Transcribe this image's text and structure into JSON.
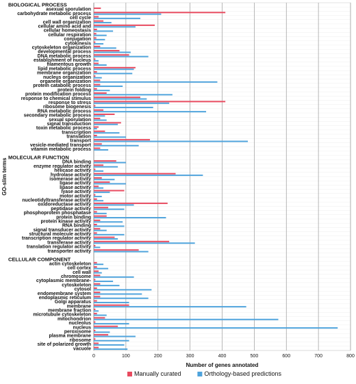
{
  "chart_data": {
    "type": "bar",
    "orientation": "horizontal",
    "xlabel": "Number of genes annotated",
    "ylabel": "GO-slim terms",
    "xlim": [
      0,
      800
    ],
    "xticks": [
      "0",
      "100",
      "200",
      "300",
      "400",
      "500",
      "600",
      "700",
      "800"
    ],
    "grid": true,
    "legend_position": "bottom",
    "series": [
      {
        "name": "Manually curated",
        "color": "#e84a5f"
      },
      {
        "name": "Orthology-based predictions",
        "color": "#4ea3dc"
      }
    ],
    "sections": [
      {
        "title": "BIOLOGICAL PROCESS",
        "items": [
          {
            "label": "asexual sporulation",
            "manual": 22,
            "ortholog": 0
          },
          {
            "label": "carbohydrate metabolic process",
            "manual": 410,
            "ortholog": 210
          },
          {
            "label": "cell cycle",
            "manual": 15,
            "ortholog": 145
          },
          {
            "label": "cell wall organization",
            "manual": 30,
            "ortholog": 55
          },
          {
            "label": "cellular amino acid and",
            "manual": 190,
            "ortholog": 130
          },
          {
            "label": "cellular homeostasis",
            "manual": 10,
            "ortholog": 60
          },
          {
            "label": "cellular respiration",
            "manual": 8,
            "ortholog": 40
          },
          {
            "label": "conjugation",
            "manual": 8,
            "ortholog": 35
          },
          {
            "label": "cytokinesis",
            "manual": 5,
            "ortholog": 30
          },
          {
            "label": "cytoskeleton organization",
            "manual": 20,
            "ortholog": 70
          },
          {
            "label": "developmental process",
            "manual": 80,
            "ortholog": 115
          },
          {
            "label": "DNA metabolic process",
            "manual": 110,
            "ortholog": 170
          },
          {
            "label": "establishment of nucleus",
            "manual": 5,
            "ortholog": 15
          },
          {
            "label": "filamentous growth",
            "manual": 15,
            "ortholog": 40
          },
          {
            "label": "lipid metabolic process",
            "manual": 130,
            "ortholog": 125
          },
          {
            "label": "membrane organization",
            "manual": 10,
            "ortholog": 120
          },
          {
            "label": "nucleus organization",
            "manual": 5,
            "ortholog": 25
          },
          {
            "label": "organelle organization",
            "manual": 20,
            "ortholog": 385
          },
          {
            "label": "protein catabolic process",
            "manual": 20,
            "ortholog": 90
          },
          {
            "label": "protein folding",
            "manual": 10,
            "ortholog": 50
          },
          {
            "label": "protein modification process",
            "manual": 40,
            "ortholog": 245
          },
          {
            "label": "response to chemical stimulus",
            "manual": 145,
            "ortholog": 165
          },
          {
            "label": "response to stress",
            "manual": 410,
            "ortholog": 235
          },
          {
            "label": "ribosome biogenesis",
            "manual": 5,
            "ortholog": 185
          },
          {
            "label": "RNA metabolic process",
            "manual": 30,
            "ortholog": 350
          },
          {
            "label": "secondary metabolic process",
            "manual": 65,
            "ortholog": 35
          },
          {
            "label": "sexual sporulation",
            "manual": 20,
            "ortholog": 40
          },
          {
            "label": "signal transduction",
            "manual": 85,
            "ortholog": 75
          },
          {
            "label": "toxin metabolic process",
            "manual": 15,
            "ortholog": 10
          },
          {
            "label": "transcription",
            "manual": 35,
            "ortholog": 80
          },
          {
            "label": "translation",
            "manual": 10,
            "ortholog": 100
          },
          {
            "label": "transport",
            "manual": 175,
            "ortholog": 480
          },
          {
            "label": "vesicle-mediated transport",
            "manual": 25,
            "ortholog": 140
          },
          {
            "label": "vitamin metabolic process",
            "manual": 20,
            "ortholog": 45
          }
        ]
      },
      {
        "title": "MOLECULAR FUNCTION",
        "items": [
          {
            "label": "DNA binding",
            "manual": 70,
            "ortholog": 100
          },
          {
            "label": "enzyme regulator activity",
            "manual": 30,
            "ortholog": 75
          },
          {
            "label": "helicase activity",
            "manual": 5,
            "ortholog": 30
          },
          {
            "label": "hydrolase activity",
            "manual": 255,
            "ortholog": 340
          },
          {
            "label": "isomerase activity",
            "manual": 25,
            "ortholog": 65
          },
          {
            "label": "ligase activity",
            "manual": 50,
            "ortholog": 100
          },
          {
            "label": "lipase activity",
            "manual": 15,
            "ortholog": 30
          },
          {
            "label": "lyase activity",
            "manual": 95,
            "ortholog": 50
          },
          {
            "label": "motor activity",
            "manual": 5,
            "ortholog": 25
          },
          {
            "label": "nucleotidyltransferase activity",
            "manual": 10,
            "ortholog": 30
          },
          {
            "label": "oxidoreductase activity",
            "manual": 230,
            "ortholog": 125
          },
          {
            "label": "peptidase activity",
            "manual": 45,
            "ortholog": 95
          },
          {
            "label": "phosphoprotein phosphatase",
            "manual": 10,
            "ortholog": 40
          },
          {
            "label": "protein binding",
            "manual": 40,
            "ortholog": 225
          },
          {
            "label": "protein kinase activity",
            "manual": 20,
            "ortholog": 90
          },
          {
            "label": "RNA binding",
            "manual": 10,
            "ortholog": 95
          },
          {
            "label": "signal transducer activity",
            "manual": 20,
            "ortholog": 40
          },
          {
            "label": "structural molecule activity",
            "manual": 10,
            "ortholog": 95
          },
          {
            "label": "transcription regulator activity",
            "manual": 65,
            "ortholog": 75
          },
          {
            "label": "transferase activity",
            "manual": 235,
            "ortholog": 315
          },
          {
            "label": "translation regulator activity",
            "manual": 5,
            "ortholog": 20
          },
          {
            "label": "transporter activity",
            "manual": 140,
            "ortholog": 170
          }
        ]
      },
      {
        "title": "CELLULAR COMPONENT",
        "items": [
          {
            "label": "actin cytoskeleton",
            "manual": 10,
            "ortholog": 30
          },
          {
            "label": "cell cortex",
            "manual": 10,
            "ortholog": 45
          },
          {
            "label": "cell wall",
            "manual": 15,
            "ortholog": 25
          },
          {
            "label": "chromosome",
            "manual": 20,
            "ortholog": 125
          },
          {
            "label": "cytoplasmic membrane-",
            "manual": 5,
            "ortholog": 60
          },
          {
            "label": "cytoskeleton",
            "manual": 20,
            "ortholog": 80
          },
          {
            "label": "cytosol",
            "manual": 10,
            "ortholog": 180
          },
          {
            "label": "endomembrane system",
            "manual": 20,
            "ortholog": 150
          },
          {
            "label": "endoplasmic reticulum",
            "manual": 20,
            "ortholog": 170
          },
          {
            "label": "Golgi apparatus",
            "manual": 10,
            "ortholog": 110
          },
          {
            "label": "membrane",
            "manual": 110,
            "ortholog": 475
          },
          {
            "label": "membrane fraction",
            "manual": 5,
            "ortholog": 15
          },
          {
            "label": "microtubule cytoskeleton",
            "manual": 10,
            "ortholog": 40
          },
          {
            "label": "mitochondrion",
            "manual": 35,
            "ortholog": 575
          },
          {
            "label": "nucleolus",
            "manual": 5,
            "ortholog": 110
          },
          {
            "label": "nucleus",
            "manual": 75,
            "ortholog": 760
          },
          {
            "label": "peroxisome",
            "manual": 5,
            "ortholog": 50
          },
          {
            "label": "plasma membrane",
            "manual": 45,
            "ortholog": 130
          },
          {
            "label": "ribosome",
            "manual": 5,
            "ortholog": 110
          },
          {
            "label": "site of polarized growth",
            "manual": 15,
            "ortholog": 95
          },
          {
            "label": "vacuole",
            "manual": 15,
            "ortholog": 105
          }
        ]
      }
    ]
  }
}
